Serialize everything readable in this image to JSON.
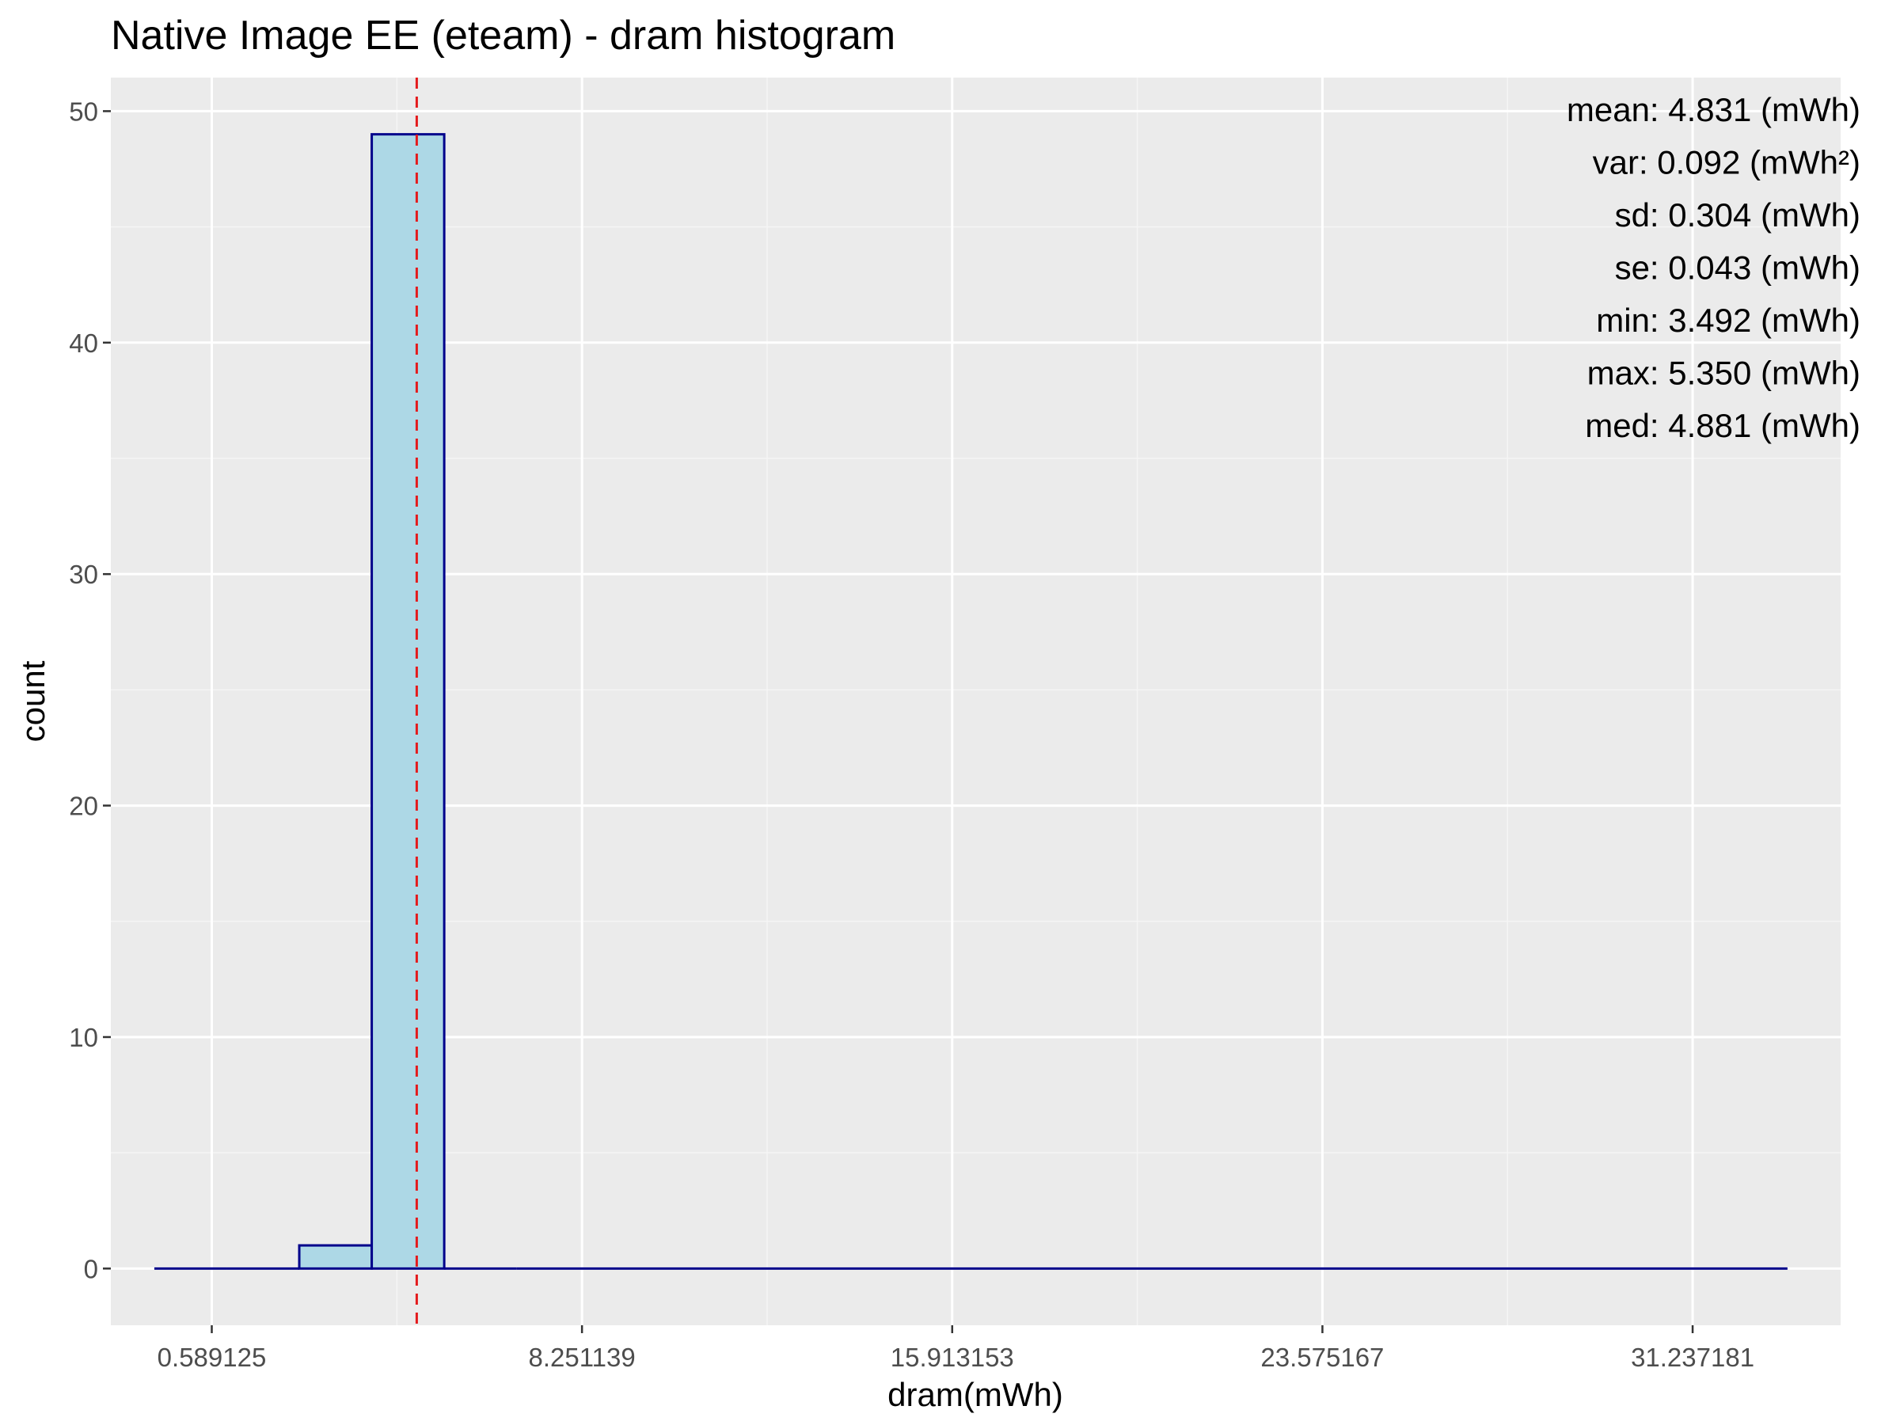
{
  "chart_data": {
    "type": "bar",
    "title": "Native Image EE (eteam) - dram histogram",
    "xlabel": "dram(mWh)",
    "ylabel": "count",
    "x_ticks": [
      0.589125,
      8.251139,
      15.913153,
      23.575167,
      31.237181
    ],
    "x_tick_labels": [
      "0.589125",
      "8.251139",
      "15.913153",
      "23.575167",
      "31.237181"
    ],
    "y_ticks": [
      0,
      10,
      20,
      30,
      40,
      50
    ],
    "y_tick_labels": [
      "0",
      "10",
      "20",
      "30",
      "40",
      "50"
    ],
    "xlim": [
      -1.5,
      34.3
    ],
    "ylim": [
      -2.45,
      51.45
    ],
    "bins": [
      {
        "x0": -0.6,
        "x1": 0.9,
        "count": 0
      },
      {
        "x0": 0.9,
        "x1": 2.4,
        "count": 0
      },
      {
        "x0": 2.4,
        "x1": 3.9,
        "count": 1
      },
      {
        "x0": 3.9,
        "x1": 5.4,
        "count": 49
      },
      {
        "x0": 5.4,
        "x1": 6.9,
        "count": 0
      },
      {
        "x0": 6.9,
        "x1": 33.2,
        "count": 0
      }
    ],
    "mean_line": 4.831,
    "stats": [
      "mean: 4.831 (mWh)",
      "var: 0.092 (mWh²)",
      "sd: 0.304 (mWh)",
      "se: 0.043 (mWh)",
      "min: 3.492 (mWh)",
      "max: 5.350 (mWh)",
      "med: 4.881 (mWh)"
    ],
    "legend": "none",
    "grid": true,
    "colors": {
      "panel_background": "#ebebeb",
      "grid_major": "#ffffff",
      "grid_minor": "#f5f5f5",
      "bar_fill": "#add8e6",
      "bar_outline": "#00008b",
      "mean_line": "#e41a1c"
    }
  }
}
